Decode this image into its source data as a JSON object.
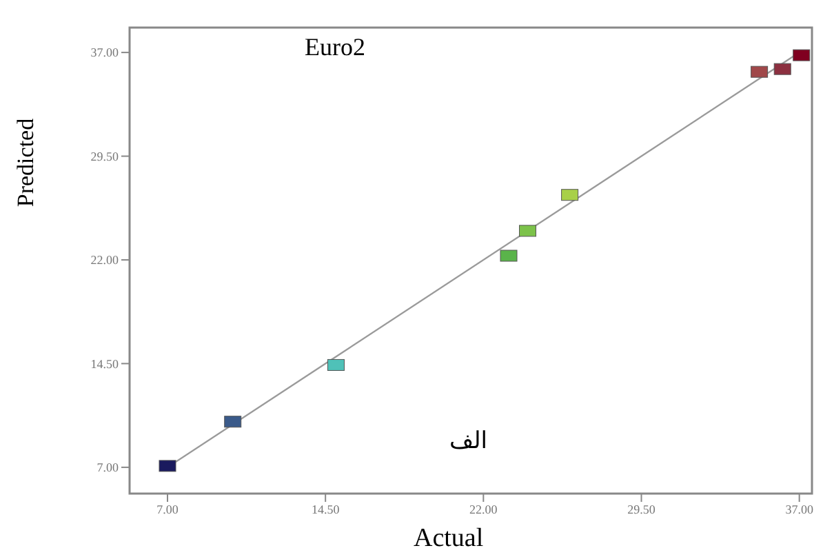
{
  "chart_data": {
    "type": "scatter",
    "xlabel": "Actual",
    "ylabel": "Predicted",
    "annotations": [
      "Euro2",
      "الف"
    ],
    "xlim": [
      5.2,
      37.6
    ],
    "ylim": [
      5.1,
      38.8
    ],
    "xticks": [
      {
        "value": 7,
        "label": "7.00"
      },
      {
        "value": 14.5,
        "label": "14.50"
      },
      {
        "value": 22,
        "label": "22.00"
      },
      {
        "value": 29.5,
        "label": "29.50"
      },
      {
        "value": 37,
        "label": "37.00"
      }
    ],
    "yticks": [
      {
        "value": 7,
        "label": "7.00"
      },
      {
        "value": 14.5,
        "label": "14.50"
      },
      {
        "value": 22,
        "label": "22.00"
      },
      {
        "value": 29.5,
        "label": "29.50"
      },
      {
        "value": 37,
        "label": "37.00"
      }
    ],
    "grid": false,
    "series": [
      {
        "marker": "square",
        "x": [
          7.0,
          10.1,
          15.0,
          23.2,
          24.1,
          26.1,
          35.1,
          36.2,
          37.1
        ],
        "values": [
          7.1,
          10.3,
          14.4,
          22.3,
          24.1,
          26.7,
          35.6,
          35.8,
          36.8
        ],
        "colors": [
          "#1a1a5e",
          "#3a5a8a",
          "#4fc1b8",
          "#5ab44a",
          "#7cc24a",
          "#a8d048",
          "#a0484a",
          "#8c3040",
          "#800020"
        ]
      },
      {
        "type": "line",
        "color": "#9a9a9a",
        "x": [
          7,
          37
        ],
        "values": [
          7,
          37
        ]
      }
    ]
  }
}
